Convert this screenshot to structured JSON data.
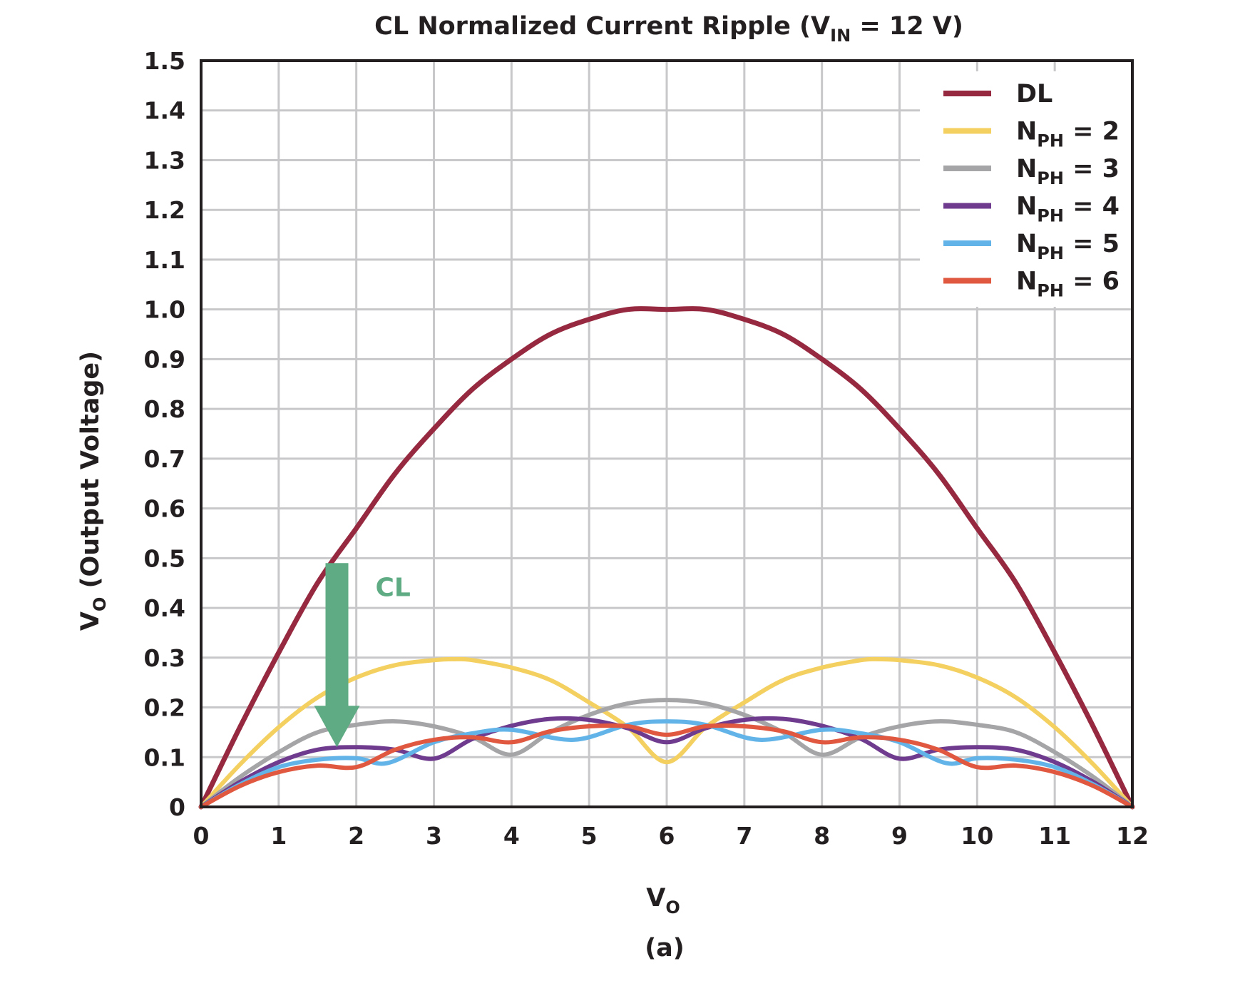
{
  "chart_data": {
    "type": "line",
    "title": {
      "main": "CL Normalized Current Ripple (V",
      "sub": "IN",
      "tail": " = 12 V)"
    },
    "xlabel": {
      "main": "V",
      "sub": "O"
    },
    "ylabel": {
      "main": "V",
      "sub": "O",
      "tail": " (Output Voltage)"
    },
    "caption": "(a)",
    "xlim": [
      0,
      12
    ],
    "ylim": [
      0,
      1.5
    ],
    "x_ticks": [
      0,
      1,
      2,
      3,
      4,
      5,
      6,
      7,
      8,
      9,
      10,
      11,
      12
    ],
    "x_tick_labels": [
      "0",
      "1",
      "2",
      "3",
      "4",
      "5",
      "6",
      "7",
      "8",
      "9",
      "10",
      "11",
      "12"
    ],
    "y_ticks": [
      0,
      0.1,
      0.2,
      0.3,
      0.4,
      0.5,
      0.6,
      0.7,
      0.8,
      0.9,
      1.0,
      1.1,
      1.2,
      1.3,
      1.4,
      1.5
    ],
    "y_tick_labels": [
      "0",
      "0.1",
      "0.2",
      "0.3",
      "0.4",
      "0.5",
      "0.6",
      "0.7",
      "0.8",
      "0.9",
      "1.0",
      "1.1",
      "1.2",
      "1.3",
      "1.4",
      "1.5"
    ],
    "grid": true,
    "legend_position": "top-right",
    "series": [
      {
        "name": "DL",
        "color": "#96293f",
        "x": [
          0,
          0.5,
          1,
          1.5,
          2,
          2.5,
          3,
          3.5,
          4,
          4.5,
          5,
          5.5,
          6,
          6.5,
          7,
          7.5,
          8,
          8.5,
          9,
          9.5,
          10,
          10.5,
          11,
          11.5,
          12
        ],
        "y": [
          0,
          0.16,
          0.31,
          0.45,
          0.56,
          0.67,
          0.76,
          0.84,
          0.9,
          0.95,
          0.98,
          1.0,
          1.0,
          1.0,
          0.98,
          0.95,
          0.9,
          0.84,
          0.76,
          0.67,
          0.56,
          0.45,
          0.31,
          0.16,
          0
        ]
      },
      {
        "name": "2",
        "color": "#f4d061",
        "x": [
          0,
          0.5,
          1,
          1.5,
          2,
          2.5,
          3,
          3.3,
          3.5,
          4,
          4.5,
          5,
          5.5,
          6,
          6.5,
          7,
          7.5,
          8,
          8.5,
          8.7,
          9,
          9.5,
          10,
          10.5,
          11,
          11.5,
          12
        ],
        "y": [
          0,
          0.085,
          0.16,
          0.22,
          0.26,
          0.285,
          0.295,
          0.297,
          0.295,
          0.28,
          0.255,
          0.21,
          0.16,
          0.09,
          0.16,
          0.21,
          0.255,
          0.28,
          0.295,
          0.297,
          0.295,
          0.285,
          0.26,
          0.22,
          0.16,
          0.085,
          0
        ]
      },
      {
        "name": "3",
        "color": "#a5a4a6",
        "x": [
          0,
          0.5,
          1,
          1.5,
          2,
          2.5,
          3,
          3.5,
          4,
          4.5,
          5,
          5.5,
          6,
          6.5,
          7,
          7.5,
          8,
          8.5,
          9,
          9.5,
          10,
          10.5,
          11,
          11.5,
          12
        ],
        "y": [
          0,
          0.06,
          0.11,
          0.15,
          0.165,
          0.172,
          0.162,
          0.14,
          0.105,
          0.15,
          0.185,
          0.208,
          0.215,
          0.208,
          0.185,
          0.15,
          0.105,
          0.14,
          0.162,
          0.172,
          0.165,
          0.15,
          0.11,
          0.06,
          0
        ]
      },
      {
        "name": "4",
        "color": "#6f3b8e",
        "x": [
          0,
          0.5,
          1,
          1.5,
          2,
          2.5,
          3,
          3.5,
          4,
          4.5,
          5,
          5.5,
          6,
          6.5,
          7,
          7.5,
          8,
          8.5,
          9,
          9.5,
          10,
          10.5,
          11,
          11.5,
          12
        ],
        "y": [
          0,
          0.05,
          0.09,
          0.115,
          0.12,
          0.115,
          0.097,
          0.137,
          0.163,
          0.177,
          0.175,
          0.158,
          0.13,
          0.158,
          0.175,
          0.177,
          0.163,
          0.137,
          0.097,
          0.115,
          0.12,
          0.115,
          0.09,
          0.05,
          0
        ]
      },
      {
        "name": "5",
        "color": "#62b4e8",
        "x": [
          0,
          0.5,
          1,
          1.5,
          2,
          2.4,
          3,
          3.5,
          4,
          4.8,
          5.5,
          6,
          6.5,
          7.2,
          8,
          8.5,
          9,
          9.6,
          10,
          10.5,
          11,
          11.5,
          12
        ],
        "y": [
          0,
          0.045,
          0.08,
          0.095,
          0.098,
          0.088,
          0.13,
          0.148,
          0.155,
          0.135,
          0.165,
          0.172,
          0.165,
          0.135,
          0.155,
          0.148,
          0.13,
          0.088,
          0.098,
          0.095,
          0.08,
          0.045,
          0
        ]
      },
      {
        "name": "6",
        "color": "#e0583f",
        "x": [
          0,
          0.5,
          1,
          1.5,
          2,
          2.5,
          3,
          3.5,
          4,
          4.5,
          5,
          5.5,
          6,
          6.5,
          7,
          7.5,
          8,
          8.5,
          9,
          9.5,
          10,
          10.5,
          11,
          11.5,
          12
        ],
        "y": [
          0,
          0.042,
          0.07,
          0.083,
          0.08,
          0.115,
          0.135,
          0.14,
          0.13,
          0.152,
          0.162,
          0.162,
          0.145,
          0.162,
          0.162,
          0.152,
          0.13,
          0.14,
          0.135,
          0.115,
          0.08,
          0.083,
          0.07,
          0.042,
          0
        ]
      }
    ],
    "legend_prefix": {
      "main": "N",
      "sub": "PH",
      "eq": " = "
    },
    "annotation": {
      "text": "CL",
      "color": "#5fab83",
      "arrow_x": 1.75,
      "arrow_y_from": 0.49,
      "arrow_y_to": 0.12
    }
  }
}
